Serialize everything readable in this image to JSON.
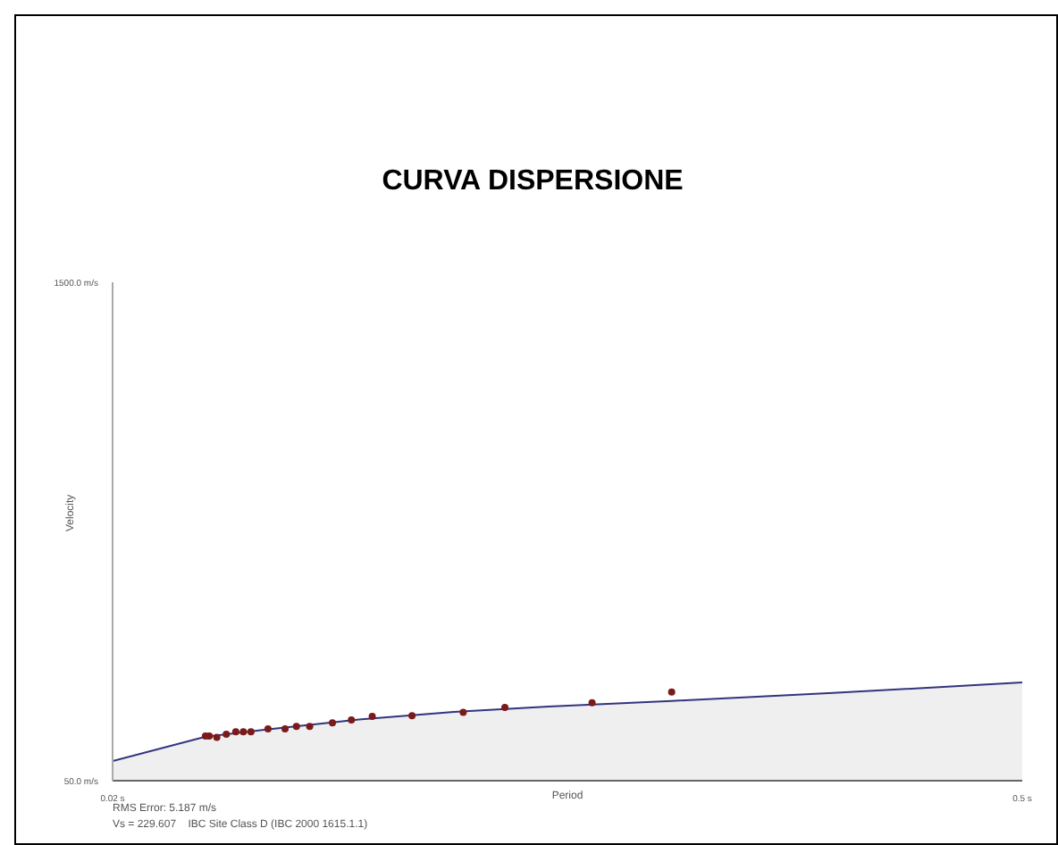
{
  "chart_data": {
    "type": "scatter",
    "title": "CURVA DISPERSIONE",
    "xlabel": "Period",
    "ylabel": "Velocity",
    "xlim": [
      0.02,
      0.5
    ],
    "xticks": [
      {
        "value": 0.02,
        "label": "0.02 s"
      },
      {
        "value": 0.5,
        "label": "0.5 s"
      }
    ],
    "ylim": [
      50,
      1500
    ],
    "yticks": [
      {
        "value": 50,
        "label": "50.0 m/s"
      },
      {
        "value": 1500,
        "label": "1500.0 m/s"
      }
    ],
    "grid": false,
    "legend": false,
    "annotations": [
      "RMS Error: 5.187 m/s",
      "Vs = 229.607    IBC Site Class D (IBC 2000 1615.1.1)"
    ],
    "series": [
      {
        "type": "area",
        "color": "#33337f",
        "x": [
          0.02,
          0.069,
          0.1,
          0.15,
          0.2,
          0.25,
          0.315,
          0.4,
          0.5
        ],
        "values": [
          107,
          178,
          198,
          228,
          250,
          266,
          282,
          305,
          336
        ]
      },
      {
        "marker": "circle",
        "color": "#7a1a1a",
        "x": [
          0.069,
          0.071,
          0.075,
          0.08,
          0.085,
          0.089,
          0.093,
          0.102,
          0.111,
          0.117,
          0.124,
          0.136,
          0.146,
          0.157,
          0.178,
          0.205,
          0.227,
          0.273,
          0.315
        ],
        "values": [
          180,
          180,
          176,
          185,
          192,
          192,
          192,
          201,
          201,
          208,
          208,
          218,
          227,
          237,
          239,
          249,
          263,
          277,
          308
        ]
      }
    ]
  }
}
